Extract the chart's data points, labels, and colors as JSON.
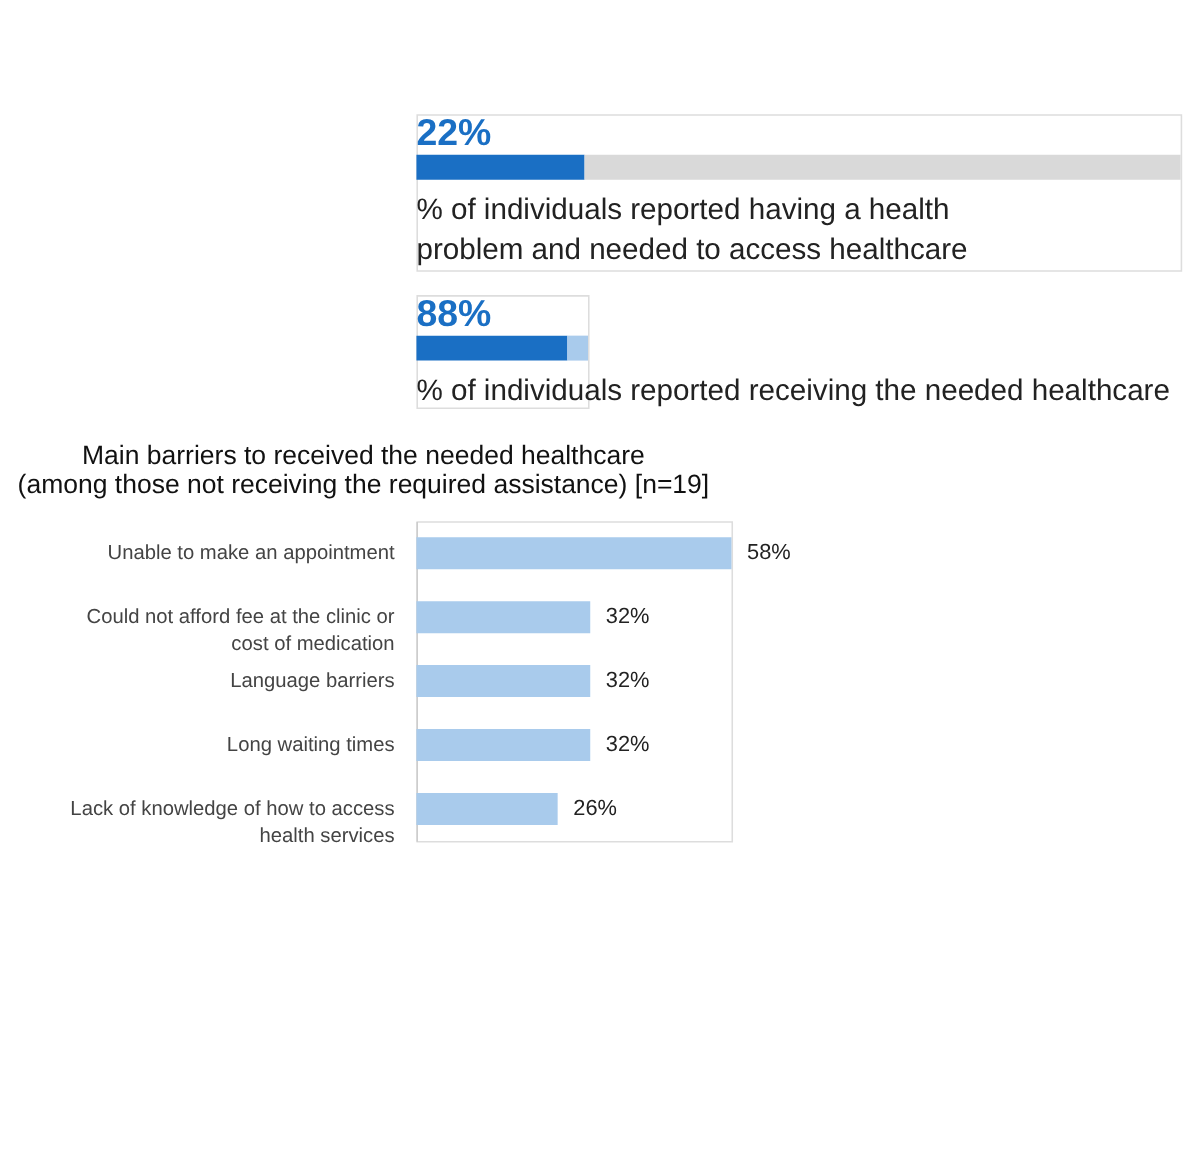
{
  "chart_data": [
    {
      "type": "bar",
      "orientation": "horizontal",
      "stacked": true,
      "categories": [
        null
      ],
      "xlim": [
        0,
        100
      ],
      "series": [
        {
          "color": "#1a6fc4",
          "values": [
            22
          ],
          "value_labels": [
            "22%"
          ]
        },
        {
          "color": "#d9d9d9",
          "values": [
            78
          ]
        }
      ],
      "annotations": [
        "% of individuals reported having a health problem and needed to access healthcare"
      ]
    },
    {
      "type": "bar",
      "orientation": "horizontal",
      "stacked": true,
      "categories": [
        null
      ],
      "xlim": [
        0,
        100
      ],
      "series": [
        {
          "color": "#1a6fc4",
          "values": [
            88
          ],
          "value_labels": [
            "88%"
          ]
        },
        {
          "color": "#a9cbec",
          "values": [
            12
          ]
        }
      ],
      "annotations": [
        "% of individuals reported receiving the needed healthcare"
      ]
    },
    {
      "type": "bar",
      "orientation": "horizontal",
      "title": "Main barriers to received the needed healthcare\n(among those not receiving the required assistance) [n=19]",
      "categories": [
        "Unable to make an appointment",
        "Could not afford fee at the clinic or cost of medication",
        "Language barriers",
        "Long waiting times",
        "Lack of knowledge of how to access health services"
      ],
      "values": [
        58,
        32,
        32,
        32,
        26
      ],
      "color": "#a9cbec",
      "value_labels": [
        "58%",
        "32%",
        "32%",
        "32%",
        "26%"
      ]
    }
  ]
}
